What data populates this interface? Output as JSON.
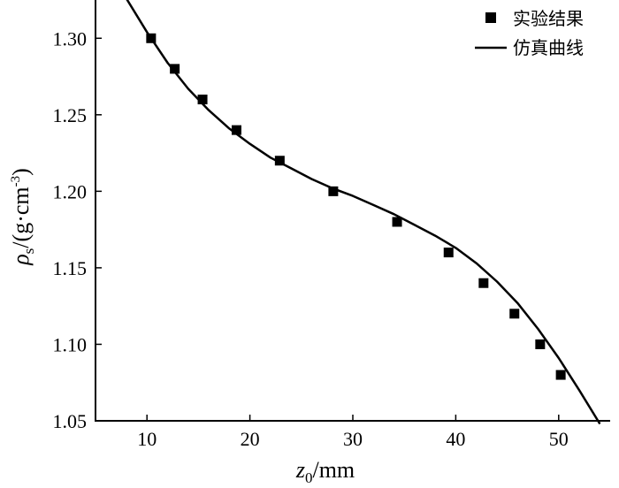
{
  "chart_data": {
    "type": "scatter",
    "xlim": [
      5,
      55
    ],
    "ylim": [
      1.05,
      1.325
    ],
    "x_ticks": [
      10,
      20,
      30,
      40,
      50
    ],
    "y_ticks": [
      1.05,
      1.1,
      1.15,
      1.2,
      1.25,
      1.3
    ],
    "x_tick_labels": [
      "10",
      "20",
      "30",
      "40",
      "50"
    ],
    "y_tick_labels": [
      "1.05",
      "1.10",
      "1.15",
      "1.20",
      "1.25",
      "1.30"
    ],
    "xlabel": {
      "main": "z",
      "sub": "0",
      "unit": "/mm"
    },
    "ylabel": {
      "main": "ρ",
      "sub": "s",
      "unit_before": "/(g·cm",
      "sup": "-3",
      "unit_after": ")"
    },
    "grid": false,
    "legend_position": "top-right",
    "series": [
      {
        "name": "实验结果",
        "type": "scatter",
        "marker": "square",
        "color": "#000000",
        "x": [
          10.4,
          12.7,
          15.4,
          18.7,
          22.9,
          28.1,
          34.3,
          39.3,
          42.7,
          45.7,
          48.2,
          50.2
        ],
        "y": [
          1.3,
          1.28,
          1.26,
          1.24,
          1.22,
          1.2,
          1.18,
          1.16,
          1.14,
          1.12,
          1.1,
          1.08
        ]
      },
      {
        "name": "仿真曲线",
        "type": "line",
        "color": "#000000",
        "x": [
          8.0,
          10.0,
          12.0,
          14.0,
          16.0,
          18.0,
          20.0,
          22.0,
          24.0,
          26.0,
          28.0,
          30.0,
          32.0,
          34.0,
          36.0,
          38.0,
          40.0,
          42.0,
          44.0,
          46.0,
          48.0,
          50.0,
          52.0,
          54.0
        ],
        "y": [
          1.326,
          1.304,
          1.284,
          1.267,
          1.253,
          1.241,
          1.231,
          1.222,
          1.215,
          1.208,
          1.202,
          1.197,
          1.191,
          1.185,
          1.178,
          1.171,
          1.163,
          1.153,
          1.141,
          1.127,
          1.11,
          1.091,
          1.07,
          1.048
        ]
      }
    ]
  }
}
